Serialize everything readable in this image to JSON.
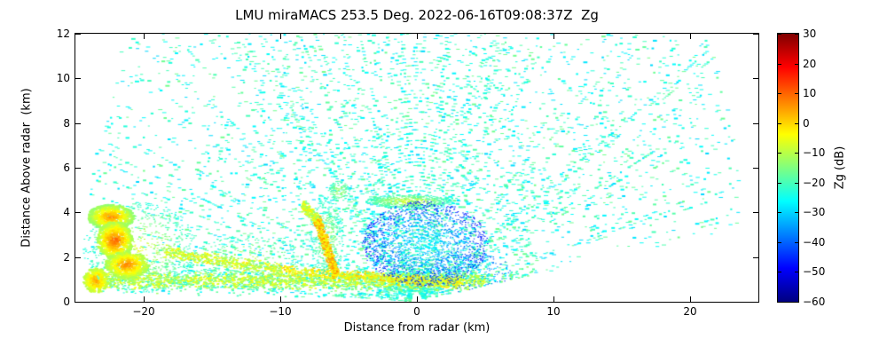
{
  "chart_data": {
    "type": "scatter",
    "subtype": "radar-rhi",
    "title": "LMU miraMACS 253.5 Deg. 2022-06-16T09:08:37Z  Zg",
    "xlabel": "Distance from radar (km)",
    "ylabel": "Distance Above radar  (km)",
    "grid": false,
    "x_range": [
      -25,
      25
    ],
    "y_range": [
      0,
      12
    ],
    "x_ticks": [
      -20,
      -10,
      0,
      10,
      20
    ],
    "x_tick_labels": [
      "−20",
      "−10",
      "0",
      "10",
      "20"
    ],
    "y_ticks": [
      0,
      2,
      4,
      6,
      8,
      10,
      12
    ],
    "y_tick_labels": [
      "0",
      "2",
      "4",
      "6",
      "8",
      "10",
      "12"
    ],
    "colorbar": {
      "label": "Zg (dB)",
      "colormap": "jet",
      "range": [
        -60,
        30
      ],
      "ticks": [
        30,
        20,
        10,
        0,
        -10,
        -20,
        -30,
        -40,
        -50,
        -60
      ],
      "tick_labels": [
        "30",
        "20",
        "10",
        "0",
        "−10",
        "−20",
        "−30",
        "−40",
        "−50",
        "−60"
      ]
    },
    "fan": {
      "comment": "RHI sweep fan of weak speckle echoes, radar at origin",
      "elev_min_deg": 8,
      "elev_max_deg": 179,
      "range_min_km": 0.5,
      "range_max_km": 24.5,
      "speckle_db_min": -30,
      "speckle_db_max": -16,
      "density": 0.2
    },
    "features": [
      {
        "type": "blob",
        "cx": -20.3,
        "cy": 2.4,
        "rx": 4.2,
        "ry": 2.1,
        "n": 700,
        "vmin": -24,
        "vmax": -5,
        "size": 2
      },
      {
        "type": "blob",
        "cx": -12.5,
        "cy": 1.9,
        "rx": 4.2,
        "ry": 1.1,
        "n": 260,
        "vmin": -22,
        "vmax": -9,
        "size": 2
      },
      {
        "type": "line",
        "x1": -24,
        "y1": 1.0,
        "x2": 8.5,
        "y2": 0.9,
        "w": 0.85,
        "n": 800,
        "vmin": -27,
        "vmax": -12
      },
      {
        "type": "line",
        "x1": -24,
        "y1": 0.95,
        "x2": 5,
        "y2": 0.92,
        "w": 0.42,
        "n": 1500,
        "vmin": -16,
        "vmax": -3
      },
      {
        "type": "line",
        "x1": -18.5,
        "y1": 2.25,
        "x2": -9.8,
        "y2": 1.4,
        "w": 0.3,
        "n": 420,
        "vmin": -14,
        "vmax": -1
      },
      {
        "type": "line",
        "x1": -9.8,
        "y1": 1.4,
        "x2": 3.2,
        "y2": 0.8,
        "w": 0.28,
        "n": 480,
        "vmin": -9,
        "vmax": 2
      },
      {
        "type": "blob",
        "cx": -6.6,
        "cy": 2.9,
        "rx": 1.25,
        "ry": 1.8,
        "n": 420,
        "vmin": -24,
        "vmax": -9,
        "size": 2
      },
      {
        "type": "line",
        "x1": -7.3,
        "y1": 3.7,
        "x2": -8.4,
        "y2": 4.35,
        "w": 0.3,
        "n": 160,
        "vmin": -14,
        "vmax": -2
      },
      {
        "type": "blob",
        "cx": -0.6,
        "cy": 4.5,
        "rx": 3.1,
        "ry": 0.3,
        "n": 550,
        "vmin": -22,
        "vmax": -5,
        "size": 2
      },
      {
        "type": "blob",
        "cx": 0.6,
        "cy": 2.6,
        "rx": 4.6,
        "ry": 1.9,
        "n": 1500,
        "vmin": -47,
        "vmax": -27,
        "size": 1.5
      },
      {
        "type": "blob",
        "cx": 4.0,
        "cy": 1.3,
        "rx": 3.0,
        "ry": 0.9,
        "n": 260,
        "vmin": -42,
        "vmax": -26,
        "size": 1.5
      },
      {
        "type": "line",
        "x1": -5.9,
        "y1": 1.15,
        "x2": -7.3,
        "y2": 3.7,
        "w": 0.33,
        "n": 480,
        "vmin": -7,
        "vmax": 7
      },
      {
        "type": "blob",
        "cx": -22.4,
        "cy": 3.8,
        "rx": 1.7,
        "ry": 0.55,
        "n": 550,
        "vmin": -14,
        "vmax": 7,
        "size": 3
      },
      {
        "type": "blob",
        "cx": -22.1,
        "cy": 2.75,
        "rx": 1.3,
        "ry": 0.85,
        "n": 650,
        "vmin": -12,
        "vmax": 11,
        "size": 3
      },
      {
        "type": "blob",
        "cx": -21.2,
        "cy": 1.65,
        "rx": 1.6,
        "ry": 0.6,
        "n": 500,
        "vmin": -12,
        "vmax": 8,
        "size": 3
      },
      {
        "type": "blob",
        "cx": -23.5,
        "cy": 0.95,
        "rx": 0.9,
        "ry": 0.55,
        "n": 260,
        "vmin": -10,
        "vmax": 5,
        "size": 3
      },
      {
        "type": "blob",
        "cx": -5.7,
        "cy": 4.95,
        "rx": 0.8,
        "ry": 0.45,
        "n": 110,
        "vmin": -22,
        "vmax": -10,
        "size": 2
      }
    ]
  }
}
